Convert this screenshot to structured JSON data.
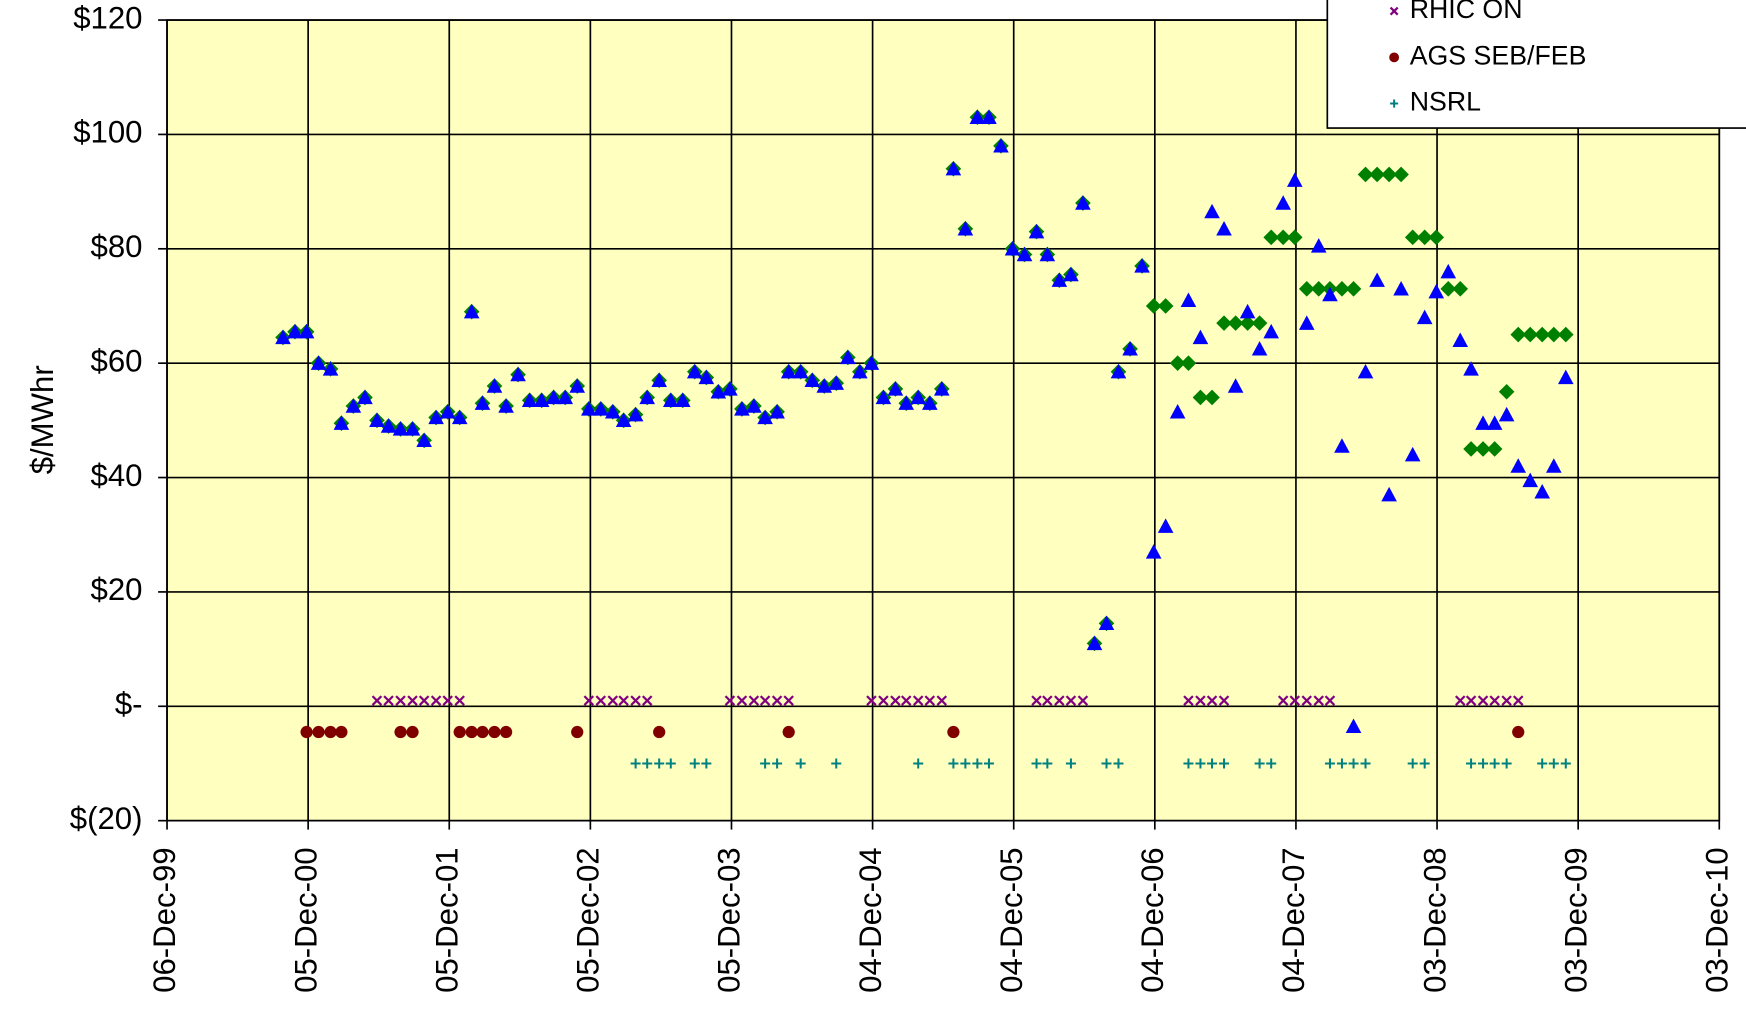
{
  "chart_data": {
    "type": "scatter",
    "y_label": "$/MWhr",
    "grid": true,
    "legend": "top-right",
    "plot_background": "#ffffc0",
    "xlim": [
      "1999-12-06",
      "2010-12-03"
    ],
    "xticks": [
      {
        "value": "1999-12-06",
        "label": "06-Dec-99"
      },
      {
        "value": "2000-12-05",
        "label": "05-Dec-00"
      },
      {
        "value": "2001-12-05",
        "label": "05-Dec-01"
      },
      {
        "value": "2002-12-05",
        "label": "05-Dec-02"
      },
      {
        "value": "2003-12-05",
        "label": "05-Dec-03"
      },
      {
        "value": "2004-12-04",
        "label": "04-Dec-04"
      },
      {
        "value": "2005-12-04",
        "label": "04-Dec-05"
      },
      {
        "value": "2006-12-04",
        "label": "04-Dec-06"
      },
      {
        "value": "2007-12-04",
        "label": "04-Dec-07"
      },
      {
        "value": "2008-12-03",
        "label": "03-Dec-08"
      },
      {
        "value": "2009-12-03",
        "label": "03-Dec-09"
      },
      {
        "value": "2010-12-03",
        "label": "03-Dec-10"
      }
    ],
    "ylim": [
      -20,
      120
    ],
    "yticks": [
      {
        "value": 120,
        "label": "$120"
      },
      {
        "value": 100,
        "label": "$100"
      },
      {
        "value": 80,
        "label": "$80"
      },
      {
        "value": 60,
        "label": "$60"
      },
      {
        "value": 40,
        "label": "$40"
      },
      {
        "value": 20,
        "label": "$20"
      },
      {
        "value": 0,
        "label": "$-"
      },
      {
        "value": -20,
        "label": "$(20)"
      }
    ],
    "x": [
      "2000-10",
      "2000-11",
      "2000-12",
      "2001-01",
      "2001-02",
      "2001-03",
      "2001-04",
      "2001-05",
      "2001-06",
      "2001-07",
      "2001-08",
      "2001-09",
      "2001-10",
      "2001-11",
      "2001-12",
      "2002-01",
      "2002-02",
      "2002-03",
      "2002-04",
      "2002-05",
      "2002-06",
      "2002-07",
      "2002-08",
      "2002-09",
      "2002-10",
      "2002-11",
      "2002-12",
      "2003-01",
      "2003-02",
      "2003-03",
      "2003-04",
      "2003-05",
      "2003-06",
      "2003-07",
      "2003-08",
      "2003-09",
      "2003-10",
      "2003-11",
      "2003-12",
      "2004-01",
      "2004-02",
      "2004-03",
      "2004-04",
      "2004-05",
      "2004-06",
      "2004-07",
      "2004-08",
      "2004-09",
      "2004-10",
      "2004-11",
      "2004-12",
      "2005-01",
      "2005-02",
      "2005-03",
      "2005-04",
      "2005-05",
      "2005-06",
      "2005-07",
      "2005-08",
      "2005-09",
      "2005-10",
      "2005-11",
      "2005-12",
      "2006-01",
      "2006-02",
      "2006-03",
      "2006-04",
      "2006-05",
      "2006-06",
      "2006-07",
      "2006-08",
      "2006-09",
      "2006-10",
      "2006-11",
      "2006-12",
      "2007-01",
      "2007-02",
      "2007-03",
      "2007-04",
      "2007-05",
      "2007-06",
      "2007-07",
      "2007-08",
      "2007-09",
      "2007-10",
      "2007-11",
      "2007-12",
      "2008-01",
      "2008-02",
      "2008-03",
      "2008-04",
      "2008-05",
      "2008-06",
      "2008-07",
      "2008-08",
      "2008-09",
      "2008-10",
      "2008-11",
      "2008-12",
      "2009-01",
      "2009-02",
      "2009-03",
      "2009-04",
      "2009-05",
      "2009-06",
      "2009-07",
      "2009-08",
      "2009-09",
      "2009-10",
      "2009-11"
    ],
    "series": [
      {
        "color": "#008000",
        "marker": "diamond",
        "values": [
          64.5,
          65.5,
          65.5,
          60,
          59,
          49.5,
          52.5,
          54,
          50,
          49,
          48.5,
          48.5,
          46.5,
          50.5,
          51.5,
          50.5,
          69,
          53,
          56,
          52.5,
          58,
          53.5,
          53.5,
          54,
          54,
          56,
          52,
          52,
          51.5,
          50,
          51,
          54,
          57,
          53.5,
          53.5,
          58.5,
          57.5,
          55,
          55.5,
          52,
          52.5,
          50.5,
          51.5,
          58.5,
          58.5,
          57,
          56,
          56.5,
          61,
          58.5,
          60,
          54,
          55.5,
          53,
          54,
          53,
          55.5,
          94,
          83.5,
          103,
          103,
          98,
          80,
          79,
          83,
          79,
          74.5,
          75.5,
          88,
          11,
          14.5,
          58.5,
          62.5,
          77,
          70,
          70,
          60,
          60,
          54,
          54,
          67,
          67,
          67,
          67,
          82,
          82,
          82,
          73,
          73,
          73,
          73,
          73,
          93,
          93,
          93,
          93,
          82,
          82,
          82,
          73,
          73,
          45,
          45,
          45,
          55,
          65,
          65,
          65,
          65,
          65
        ]
      },
      {
        "color": "#0000ff",
        "marker": "triangle",
        "values": [
          64.5,
          65.5,
          65.5,
          60,
          59,
          49.5,
          52.5,
          54,
          50,
          49,
          48.5,
          48.5,
          46.5,
          50.5,
          51.5,
          50.5,
          69,
          53,
          56,
          52.5,
          58,
          53.5,
          53.5,
          54,
          54,
          56,
          52,
          52,
          51.5,
          50,
          51,
          54,
          57,
          53.5,
          53.5,
          58.5,
          57.5,
          55,
          55.5,
          52,
          52.5,
          50.5,
          51.5,
          58.5,
          58.5,
          57,
          56,
          56.5,
          61,
          58.5,
          60,
          54,
          55.5,
          53,
          54,
          53,
          55.5,
          94,
          83.5,
          103,
          103,
          98,
          80,
          79,
          83,
          79,
          74.5,
          75.5,
          88,
          11,
          14.5,
          58.5,
          62.5,
          77,
          27,
          31.5,
          51.5,
          71,
          64.5,
          86.5,
          83.5,
          56,
          69,
          62.5,
          65.5,
          88,
          92,
          67,
          80.5,
          72,
          45.5,
          -3.5,
          58.5,
          74.5,
          37,
          73,
          44,
          68,
          72.5,
          76,
          64,
          59,
          49.5,
          49.5,
          51,
          42,
          39.5,
          37.5,
          42,
          57.5
        ]
      },
      {
        "name": "RHIC ON",
        "color": "#800080",
        "marker": "x",
        "x": [
          "2001-06",
          "2001-07",
          "2001-08",
          "2001-09",
          "2001-10",
          "2001-11",
          "2001-12",
          "2002-01",
          "2002-12",
          "2003-01",
          "2003-02",
          "2003-03",
          "2003-04",
          "2003-05",
          "2003-12",
          "2004-01",
          "2004-02",
          "2004-03",
          "2004-04",
          "2004-05",
          "2004-12",
          "2005-01",
          "2005-02",
          "2005-03",
          "2005-04",
          "2005-05",
          "2005-06",
          "2006-02",
          "2006-03",
          "2006-04",
          "2006-05",
          "2006-06",
          "2007-03",
          "2007-04",
          "2007-05",
          "2007-06",
          "2007-11",
          "2007-12",
          "2008-01",
          "2008-02",
          "2008-03",
          "2009-02",
          "2009-03",
          "2009-04",
          "2009-05",
          "2009-06",
          "2009-07"
        ],
        "values": [
          1,
          1,
          1,
          1,
          1,
          1,
          1,
          1,
          1,
          1,
          1,
          1,
          1,
          1,
          1,
          1,
          1,
          1,
          1,
          1,
          1,
          1,
          1,
          1,
          1,
          1,
          1,
          1,
          1,
          1,
          1,
          1,
          1,
          1,
          1,
          1,
          1,
          1,
          1,
          1,
          1,
          1,
          1,
          1,
          1,
          1,
          1
        ]
      },
      {
        "name": "AGS SEB/FEB",
        "color": "#800000",
        "marker": "circle",
        "x": [
          "2000-12",
          "2001-01",
          "2001-02",
          "2001-03",
          "2001-08",
          "2001-09",
          "2002-01",
          "2002-02",
          "2002-03",
          "2002-04",
          "2002-05",
          "2002-11",
          "2003-06",
          "2004-05",
          "2005-07",
          "2009-07"
        ],
        "values": [
          -4.5,
          -4.5,
          -4.5,
          -4.5,
          -4.5,
          -4.5,
          -4.5,
          -4.5,
          -4.5,
          -4.5,
          -4.5,
          -4.5,
          -4.5,
          -4.5,
          -4.5,
          -4.5
        ]
      },
      {
        "name": "NSRL",
        "color": "#008080",
        "marker": "plus",
        "x": [
          "2003-04",
          "2003-05",
          "2003-06",
          "2003-07",
          "2003-09",
          "2003-10",
          "2004-03",
          "2004-04",
          "2004-06",
          "2004-09",
          "2005-04",
          "2005-07",
          "2005-08",
          "2005-09",
          "2005-10",
          "2006-02",
          "2006-03",
          "2006-05",
          "2006-08",
          "2006-09",
          "2007-03",
          "2007-04",
          "2007-05",
          "2007-06",
          "2007-09",
          "2007-10",
          "2008-03",
          "2008-04",
          "2008-05",
          "2008-06",
          "2008-10",
          "2008-11",
          "2009-03",
          "2009-04",
          "2009-05",
          "2009-06",
          "2009-09",
          "2009-10",
          "2009-11"
        ],
        "values": [
          -10,
          -10,
          -10,
          -10,
          -10,
          -10,
          -10,
          -10,
          -10,
          -10,
          -10,
          -10,
          -10,
          -10,
          -10,
          -10,
          -10,
          -10,
          -10,
          -10,
          -10,
          -10,
          -10,
          -10,
          -10,
          -10,
          -10,
          -10,
          -10,
          -10,
          -10,
          -10,
          -10,
          -10,
          -10,
          -10,
          -10,
          -10,
          -10
        ]
      }
    ]
  }
}
